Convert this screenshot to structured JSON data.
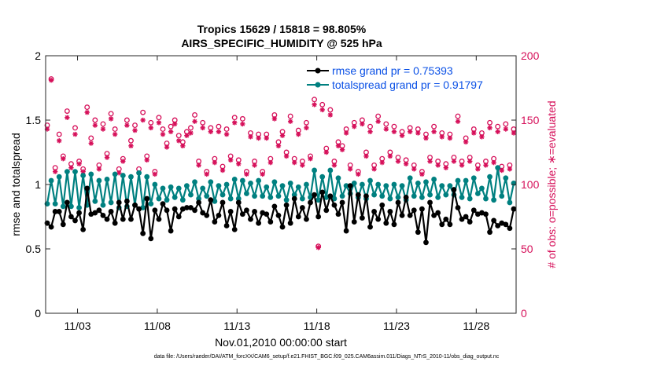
{
  "chart_data": {
    "type": "line",
    "title": "Tropics 15629 / 15818 = 98.805%",
    "subtitle": "AIRS_SPECIFIC_HUMIDITY @ 525 hPa",
    "xlabel": "Nov.01,2010 00:00:00 start",
    "ylabel_left": "rmse and totalspread",
    "ylabel_right": "# of obs: o=possible; ∗=evaluated",
    "xlim": [
      0.5,
      30.0
    ],
    "ylim_left": [
      0,
      2
    ],
    "ylim_right": [
      0,
      200
    ],
    "x_ticks": [
      {
        "value": 2.5,
        "label": "11/03"
      },
      {
        "value": 7.5,
        "label": "11/08"
      },
      {
        "value": 12.5,
        "label": "11/13"
      },
      {
        "value": 17.5,
        "label": "11/18"
      },
      {
        "value": 22.5,
        "label": "11/23"
      },
      {
        "value": 27.5,
        "label": "11/28"
      }
    ],
    "y_ticks_left": [
      "0",
      "0.5",
      "1",
      "1.5",
      "2"
    ],
    "y_ticks_right": [
      "0",
      "50",
      "100",
      "150",
      "200"
    ],
    "legend": [
      {
        "label": "rmse grand pr = 0.75393",
        "color": "#000000"
      },
      {
        "label": "totalspread grand pr = 0.91797",
        "color": "#008080"
      }
    ],
    "legend_position": "top-right",
    "colors": {
      "rmse": "#000000",
      "spread": "#008080",
      "obs": "#d6105a",
      "legend_text": "#0a50e6"
    },
    "series": [
      {
        "name": "rmse",
        "x": [
          0.6,
          0.85,
          1.1,
          1.35,
          1.6,
          1.85,
          2.1,
          2.35,
          2.6,
          2.85,
          3.1,
          3.35,
          3.6,
          3.85,
          4.1,
          4.35,
          4.6,
          4.85,
          5.1,
          5.35,
          5.6,
          5.85,
          6.1,
          6.35,
          6.6,
          6.85,
          7.1,
          7.35,
          7.6,
          7.85,
          8.1,
          8.35,
          8.6,
          8.85,
          9.1,
          9.35,
          9.6,
          9.85,
          10.1,
          10.35,
          10.6,
          10.85,
          11.1,
          11.35,
          11.6,
          11.85,
          12.1,
          12.35,
          12.6,
          12.85,
          13.1,
          13.35,
          13.6,
          13.85,
          14.1,
          14.35,
          14.6,
          14.85,
          15.1,
          15.35,
          15.6,
          15.85,
          16.1,
          16.35,
          16.6,
          16.85,
          17.1,
          17.35,
          17.6,
          17.85,
          18.1,
          18.35,
          18.6,
          18.85,
          19.1,
          19.35,
          19.6,
          19.85,
          20.1,
          20.35,
          20.6,
          20.85,
          21.1,
          21.35,
          21.6,
          21.85,
          22.1,
          22.35,
          22.6,
          22.85,
          23.1,
          23.35,
          23.6,
          23.85,
          24.1,
          24.35,
          24.6,
          24.85,
          25.1,
          25.35,
          25.6,
          25.85,
          26.1,
          26.35,
          26.6,
          26.85,
          27.1,
          27.35,
          27.6,
          27.85,
          28.1,
          28.35,
          28.6,
          28.85,
          29.1,
          29.35,
          29.6,
          29.85
        ],
        "values": [
          0.7,
          0.67,
          0.79,
          0.79,
          0.69,
          0.86,
          0.75,
          0.72,
          0.78,
          0.65,
          0.97,
          0.77,
          0.78,
          0.8,
          0.76,
          0.73,
          0.79,
          0.7,
          0.86,
          0.73,
          0.87,
          0.73,
          0.84,
          0.81,
          0.62,
          0.89,
          0.58,
          0.8,
          0.73,
          0.85,
          0.8,
          0.64,
          0.81,
          0.75,
          0.81,
          0.82,
          0.82,
          0.8,
          0.86,
          0.78,
          0.76,
          0.88,
          0.71,
          0.76,
          0.86,
          0.68,
          0.79,
          0.65,
          0.86,
          0.77,
          0.8,
          0.73,
          0.79,
          0.7,
          0.78,
          0.77,
          0.71,
          0.83,
          0.76,
          0.67,
          0.84,
          0.7,
          0.89,
          0.75,
          0.82,
          0.73,
          0.86,
          0.92,
          0.75,
          0.94,
          0.8,
          0.91,
          0.84,
          0.77,
          0.86,
          0.64,
          0.99,
          0.71,
          0.92,
          0.74,
          0.91,
          0.67,
          0.79,
          0.73,
          0.84,
          0.7,
          0.79,
          0.69,
          0.86,
          0.76,
          0.9,
          0.76,
          0.8,
          0.63,
          0.81,
          0.55,
          0.86,
          0.76,
          0.78,
          0.69,
          0.73,
          0.69,
          0.96,
          0.82,
          0.73,
          0.75,
          0.71,
          0.8,
          0.77,
          0.78,
          0.77,
          0.63,
          0.72,
          0.68,
          0.7,
          0.69,
          0.66,
          0.81
        ]
      },
      {
        "name": "totalspread",
        "x": [
          0.6,
          0.85,
          1.1,
          1.35,
          1.6,
          1.85,
          2.1,
          2.35,
          2.6,
          2.85,
          3.1,
          3.35,
          3.6,
          3.85,
          4.1,
          4.35,
          4.6,
          4.85,
          5.1,
          5.35,
          5.6,
          5.85,
          6.1,
          6.35,
          6.6,
          6.85,
          7.1,
          7.35,
          7.6,
          7.85,
          8.1,
          8.35,
          8.6,
          8.85,
          9.1,
          9.35,
          9.6,
          9.85,
          10.1,
          10.35,
          10.6,
          10.85,
          11.1,
          11.35,
          11.6,
          11.85,
          12.1,
          12.35,
          12.6,
          12.85,
          13.1,
          13.35,
          13.6,
          13.85,
          14.1,
          14.35,
          14.6,
          14.85,
          15.1,
          15.35,
          15.6,
          15.85,
          16.1,
          16.35,
          16.6,
          16.85,
          17.1,
          17.35,
          17.6,
          17.85,
          18.1,
          18.35,
          18.6,
          18.85,
          19.1,
          19.35,
          19.6,
          19.85,
          20.1,
          20.35,
          20.6,
          20.85,
          21.1,
          21.35,
          21.6,
          21.85,
          22.1,
          22.35,
          22.6,
          22.85,
          23.1,
          23.35,
          23.6,
          23.85,
          24.1,
          24.35,
          24.6,
          24.85,
          25.1,
          25.35,
          25.6,
          25.85,
          26.1,
          26.35,
          26.6,
          26.85,
          27.1,
          27.35,
          27.6,
          27.85,
          28.1,
          28.35,
          28.6,
          28.85,
          29.1,
          29.35,
          29.6,
          29.85
        ],
        "values": [
          0.85,
          1.03,
          0.85,
          1.06,
          0.83,
          1.1,
          0.83,
          1.1,
          0.82,
          1.07,
          0.84,
          1.08,
          0.87,
          1.03,
          0.84,
          1.04,
          0.86,
          1.08,
          0.82,
          1.07,
          0.83,
          1.06,
          0.84,
          1.09,
          0.82,
          1.06,
          0.85,
          1.0,
          0.89,
          0.97,
          0.88,
          0.98,
          0.9,
          0.97,
          0.88,
          0.99,
          0.92,
          1.02,
          0.89,
          0.97,
          0.91,
          1.02,
          0.87,
          0.99,
          0.92,
          1.0,
          0.89,
          1.04,
          0.89,
          1.03,
          0.93,
          1.01,
          0.91,
          1.03,
          0.91,
          0.98,
          0.9,
          1.02,
          0.91,
          0.99,
          0.88,
          1.01,
          0.92,
          0.98,
          0.89,
          1.0,
          0.9,
          1.11,
          0.88,
          1.06,
          0.9,
          1.11,
          0.89,
          1.05,
          0.91,
          0.99,
          0.93,
          1.01,
          0.9,
          1.0,
          0.89,
          1.03,
          0.92,
          1.0,
          0.91,
          0.99,
          0.89,
          1.0,
          0.9,
          0.99,
          0.88,
          1.05,
          0.91,
          1.01,
          0.9,
          1.02,
          0.92,
          1.04,
          0.9,
          0.99,
          0.92,
          0.99,
          0.92,
          1.03,
          0.9,
          1.03,
          0.89,
          1.05,
          0.93,
          0.97,
          0.89,
          1.06,
          0.88,
          1.13,
          0.91,
          1.05,
          0.86,
          1.01
        ]
      }
    ],
    "obs_possible": {
      "x": [
        0.6,
        0.85,
        1.1,
        1.35,
        1.6,
        1.85,
        2.1,
        2.35,
        2.6,
        2.85,
        3.1,
        3.35,
        3.6,
        3.85,
        4.1,
        4.35,
        4.6,
        4.85,
        5.1,
        5.35,
        5.6,
        5.85,
        6.1,
        6.35,
        6.6,
        6.85,
        7.1,
        7.35,
        7.6,
        7.85,
        8.1,
        8.35,
        8.6,
        8.85,
        9.1,
        9.35,
        9.6,
        9.85,
        10.1,
        10.35,
        10.6,
        10.85,
        11.1,
        11.35,
        11.6,
        11.85,
        12.1,
        12.35,
        12.6,
        12.85,
        13.1,
        13.35,
        13.6,
        13.85,
        14.1,
        14.35,
        14.6,
        14.85,
        15.1,
        15.35,
        15.6,
        15.85,
        16.1,
        16.35,
        16.6,
        16.85,
        17.1,
        17.35,
        17.6,
        17.85,
        18.1,
        18.35,
        18.6,
        18.85,
        19.1,
        19.35,
        19.6,
        19.85,
        20.1,
        20.35,
        20.6,
        20.85,
        21.1,
        21.35,
        21.6,
        21.85,
        22.1,
        22.35,
        22.6,
        22.85,
        23.1,
        23.35,
        23.6,
        23.85,
        24.1,
        24.35,
        24.6,
        24.85,
        25.1,
        25.35,
        25.6,
        25.85,
        26.1,
        26.35,
        26.6,
        26.85,
        27.1,
        27.35,
        27.6,
        27.85,
        28.1,
        28.35,
        28.6,
        28.85,
        29.1,
        29.35,
        29.6,
        29.85
      ],
      "values": [
        146,
        182,
        113,
        139,
        122,
        157,
        116,
        144,
        118,
        112,
        160,
        136,
        150,
        115,
        147,
        124,
        155,
        143,
        112,
        120,
        150,
        134,
        146,
        112,
        156,
        122,
        148,
        110,
        152,
        143,
        132,
        145,
        150,
        138,
        133,
        141,
        144,
        154,
        118,
        148,
        110,
        144,
        120,
        145,
        114,
        143,
        122,
        152,
        119,
        151,
        110,
        140,
        118,
        139,
        110,
        139,
        120,
        154,
        133,
        141,
        125,
        153,
        120,
        142,
        118,
        148,
        122,
        166,
        52,
        162,
        128,
        158,
        118,
        133,
        130,
        143,
        115,
        148,
        110,
        150,
        125,
        145,
        115,
        153,
        120,
        147,
        125,
        145,
        121,
        141,
        119,
        144,
        115,
        143,
        110,
        139,
        121,
        145,
        118,
        140,
        116,
        139,
        121,
        153,
        118,
        136,
        121,
        143,
        115,
        140,
        118,
        148,
        120,
        145,
        114,
        147,
        115,
        143
      ]
    },
    "obs_evaluated": {
      "x": [
        0.6,
        0.85,
        1.1,
        1.35,
        1.6,
        1.85,
        2.1,
        2.35,
        2.6,
        2.85,
        3.1,
        3.35,
        3.6,
        3.85,
        4.1,
        4.35,
        4.6,
        4.85,
        5.1,
        5.35,
        5.6,
        5.85,
        6.1,
        6.35,
        6.6,
        6.85,
        7.1,
        7.35,
        7.6,
        7.85,
        8.1,
        8.35,
        8.6,
        8.85,
        9.1,
        9.35,
        9.6,
        9.85,
        10.1,
        10.35,
        10.6,
        10.85,
        11.1,
        11.35,
        11.6,
        11.85,
        12.1,
        12.35,
        12.6,
        12.85,
        13.1,
        13.35,
        13.6,
        13.85,
        14.1,
        14.35,
        14.6,
        14.85,
        15.1,
        15.35,
        15.6,
        15.85,
        16.1,
        16.35,
        16.6,
        16.85,
        17.1,
        17.35,
        17.6,
        17.85,
        18.1,
        18.35,
        18.6,
        18.85,
        19.1,
        19.35,
        19.6,
        19.85,
        20.1,
        20.35,
        20.6,
        20.85,
        21.1,
        21.35,
        21.6,
        21.85,
        22.1,
        22.35,
        22.6,
        22.85,
        23.1,
        23.35,
        23.6,
        23.85,
        24.1,
        24.35,
        24.6,
        24.85,
        25.1,
        25.35,
        25.6,
        25.85,
        26.1,
        26.35,
        26.6,
        26.85,
        27.1,
        27.35,
        27.6,
        27.85,
        28.1,
        28.35,
        28.6,
        28.85,
        29.1,
        29.35,
        29.6,
        29.85
      ],
      "values": [
        143,
        181,
        110,
        134,
        120,
        152,
        113,
        139,
        116,
        110,
        156,
        132,
        146,
        112,
        143,
        121,
        151,
        139,
        109,
        118,
        146,
        130,
        142,
        109,
        150,
        119,
        144,
        108,
        148,
        139,
        129,
        141,
        147,
        134,
        130,
        138,
        140,
        149,
        115,
        144,
        108,
        141,
        117,
        141,
        111,
        139,
        119,
        148,
        116,
        147,
        108,
        137,
        115,
        136,
        108,
        136,
        117,
        151,
        130,
        138,
        122,
        149,
        117,
        139,
        115,
        144,
        120,
        162,
        51,
        158,
        125,
        154,
        115,
        130,
        127,
        140,
        112,
        145,
        108,
        147,
        122,
        141,
        112,
        149,
        117,
        143,
        122,
        141,
        118,
        138,
        116,
        141,
        112,
        140,
        108,
        136,
        118,
        141,
        115,
        137,
        113,
        136,
        118,
        149,
        115,
        133,
        118,
        140,
        112,
        137,
        115,
        144,
        117,
        141,
        111,
        143,
        112,
        140
      ]
    }
  },
  "footnote": "data file: /Users/raeder/DAI/ATM_forcXX/CAM6_setup/f.e21.FHIST_BGC.f09_025.CAM6assim.011/Diags_NTrS_2010-11/obs_diag_output.nc"
}
